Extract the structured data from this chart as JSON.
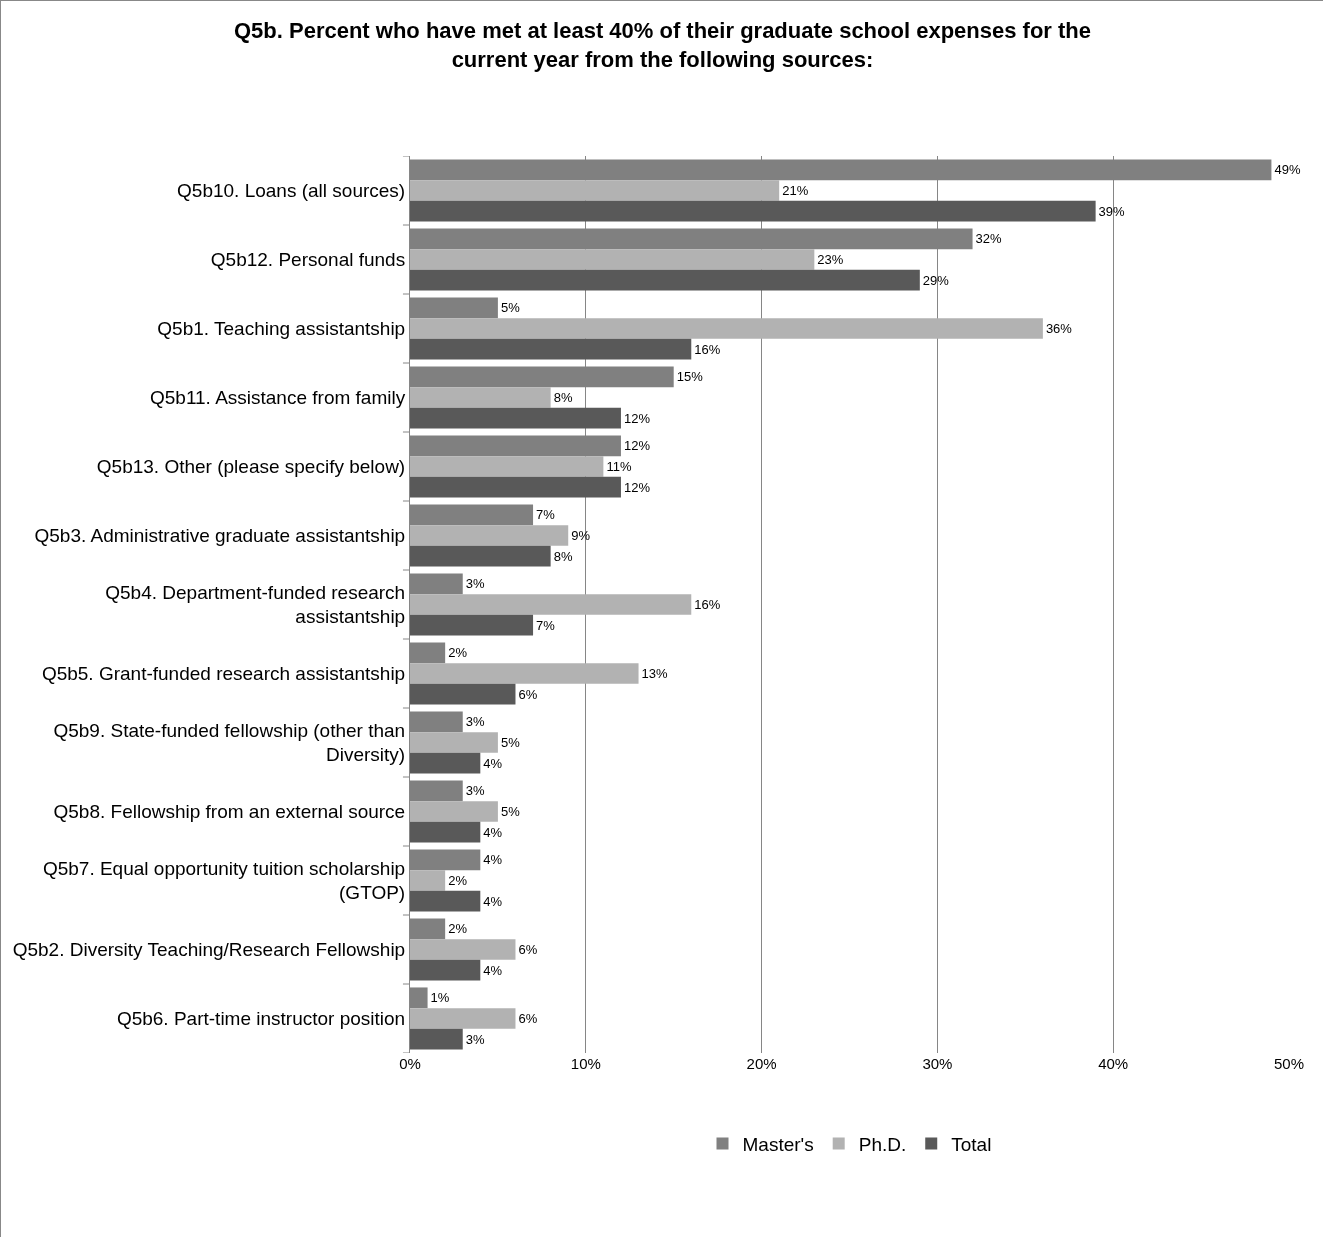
{
  "chart_data": {
    "type": "bar",
    "orientation": "horizontal",
    "title": "Q5b. Percent who have met at least 40% of their graduate school expenses for the current year from the following sources:",
    "categories": [
      "Q5b10. Loans (all sources)",
      "Q5b12. Personal funds",
      "Q5b1. Teaching assistantship",
      "Q5b11. Assistance from family",
      "Q5b13. Other (please specify below)",
      "Q5b3. Administrative graduate assistantship",
      "Q5b4. Department-funded research assistantship",
      "Q5b5. Grant-funded research assistantship",
      "Q5b9. State-funded fellowship (other than Diversity)",
      "Q5b8. Fellowship from an external source",
      "Q5b7. Equal opportunity tuition scholarship (GTOP)",
      "Q5b2. Diversity Teaching/Research Fellowship",
      "Q5b6. Part-time instructor position"
    ],
    "series": [
      {
        "name": "Master's",
        "color": "#808080",
        "values": [
          49,
          32,
          5,
          15,
          12,
          7,
          3,
          2,
          3,
          3,
          4,
          2,
          1
        ],
        "value_labels": [
          "49%",
          "32%",
          "5%",
          "15%",
          "12%",
          "7%",
          "3%",
          "2%",
          "3%",
          "3%",
          "4%",
          "2%",
          "1%"
        ]
      },
      {
        "name": "Ph.D.",
        "color": "#b2b2b2",
        "values": [
          21,
          23,
          36,
          8,
          11,
          9,
          16,
          13,
          5,
          5,
          2,
          6,
          6
        ],
        "value_labels": [
          "21%",
          "23%",
          "36%",
          "8%",
          "11%",
          "9%",
          "16%",
          "13%",
          "5%",
          "5%",
          "2%",
          "6%",
          "6%"
        ]
      },
      {
        "name": "Total",
        "color": "#595959",
        "values": [
          39,
          29,
          16,
          12,
          12,
          8,
          7,
          6,
          4,
          4,
          4,
          4,
          3
        ],
        "value_labels": [
          "39%",
          "29%",
          "16%",
          "12%",
          "12%",
          "8%",
          "7%",
          "6%",
          "4%",
          "4%",
          "4%",
          "4%",
          "3%"
        ]
      }
    ],
    "xlim": [
      0,
      50
    ],
    "xticks": [
      {
        "value": 0,
        "label": "0%"
      },
      {
        "value": 10,
        "label": "10%"
      },
      {
        "value": 20,
        "label": "20%"
      },
      {
        "value": 30,
        "label": "30%"
      },
      {
        "value": 40,
        "label": "40%"
      },
      {
        "value": 50,
        "label": "50%"
      }
    ],
    "grid": "x",
    "legend": "bottom"
  }
}
